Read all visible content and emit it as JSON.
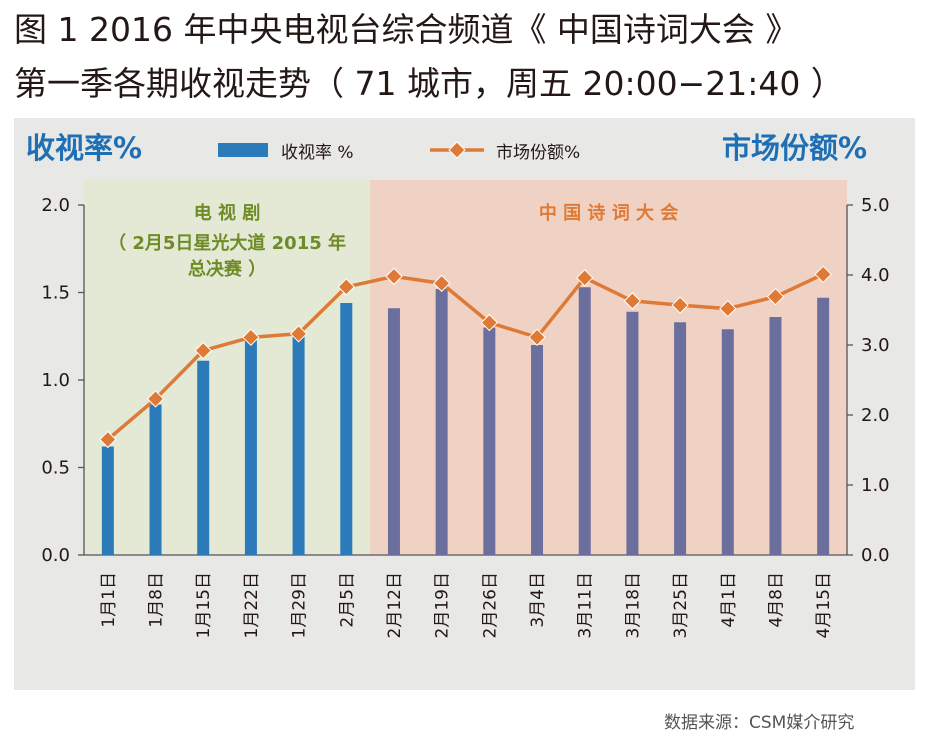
{
  "header": {
    "title_line_1": "图 1  2016 年中央电视台综合频道《 中国诗词大会 》",
    "title_line_2": "第一季各期收视走势（ 71 城市，周五 20:00−21:40 ）"
  },
  "source": "数据来源：CSM媒介研究",
  "chart_data": {
    "type": "bar",
    "categories": [
      "1月1日",
      "1月8日",
      "1月15日",
      "1月22日",
      "1月29日",
      "2月5日",
      "2月12日",
      "2月19日",
      "2月26日",
      "3月4日",
      "3月11日",
      "3月18日",
      "3月25日",
      "4月1日",
      "4月8日",
      "4月15日"
    ],
    "ylabel": "收视率%",
    "y2label": "市场份额%",
    "ylim": [
      0,
      2.0
    ],
    "y2lim": [
      0,
      5.0
    ],
    "yticks": [
      "0.0",
      "0.5",
      "1.0",
      "1.5",
      "2.0"
    ],
    "y2ticks": [
      "0.0",
      "1.0",
      "2.0",
      "3.0",
      "4.0",
      "5.0"
    ],
    "grid": false,
    "legend_position": "top-center",
    "series": [
      {
        "name": "收视率 %",
        "type": "bar",
        "axis": "left",
        "values": [
          0.62,
          0.86,
          1.11,
          1.24,
          1.28,
          1.44,
          1.41,
          1.52,
          1.3,
          1.2,
          1.53,
          1.39,
          1.33,
          1.29,
          1.36,
          1.47
        ],
        "colors": [
          "#2b7ab9",
          "#2b7ab9",
          "#2b7ab9",
          "#2b7ab9",
          "#2b7ab9",
          "#2b7ab9",
          "#6b6f9e",
          "#6b6f9e",
          "#6b6f9e",
          "#6b6f9e",
          "#6b6f9e",
          "#6b6f9e",
          "#6b6f9e",
          "#6b6f9e",
          "#6b6f9e",
          "#6b6f9e"
        ]
      },
      {
        "name": "市场份额%",
        "type": "line",
        "axis": "right",
        "color": "#de7a35",
        "values": [
          1.65,
          2.23,
          2.92,
          3.11,
          3.16,
          3.83,
          3.98,
          3.88,
          3.32,
          3.11,
          3.96,
          3.63,
          3.57,
          3.52,
          3.69,
          4.01
        ]
      }
    ],
    "regions": [
      {
        "label": "电 视 剧",
        "sublabel_1": "（ 2月5日星光大道 2015 年",
        "sublabel_2": "总决赛 ）",
        "from_index": 0,
        "to_index": 5,
        "color": "#e3e9d5",
        "text_color": "#6e8b26"
      },
      {
        "label": "中 国  诗 词 大 会",
        "sublabel_1": "",
        "sublabel_2": "",
        "from_index": 6,
        "to_index": 15,
        "color": "#f0d2c5",
        "text_color": "#de7a35"
      }
    ],
    "colors": {
      "axis_title": "#1f6fb4",
      "legend_bar": "#2b7ab9"
    }
  }
}
